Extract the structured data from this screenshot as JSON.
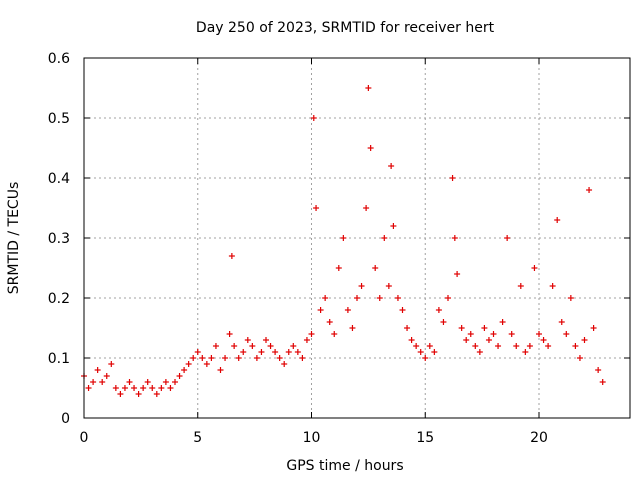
{
  "chart_data": {
    "type": "scatter",
    "title": "Day 250 of 2023, SRMTID for receiver hert",
    "xlabel": "GPS time / hours",
    "ylabel": "SRMTID / TECUs",
    "xlim": [
      0,
      24
    ],
    "ylim": [
      0,
      0.6
    ],
    "xticks": [
      0,
      5,
      10,
      15,
      20
    ],
    "yticks": [
      0,
      0.1,
      0.2,
      0.3,
      0.4,
      0.5,
      0.6
    ],
    "xtick_labels": [
      "0",
      "5",
      "10",
      "15",
      "20"
    ],
    "ytick_labels": [
      "0",
      "0.1",
      "0.2",
      "0.3",
      "0.4",
      "0.5",
      "0.6"
    ],
    "grid": true,
    "marker": "+",
    "color": "#e00000",
    "series": [
      {
        "name": "SRMTID",
        "x": [
          0.0,
          0.2,
          0.4,
          0.6,
          0.8,
          1.0,
          1.2,
          1.4,
          1.6,
          1.8,
          2.0,
          2.2,
          2.4,
          2.6,
          2.8,
          3.0,
          3.2,
          3.4,
          3.6,
          3.8,
          4.0,
          4.2,
          4.4,
          4.6,
          4.8,
          5.0,
          5.2,
          5.4,
          5.6,
          5.8,
          6.0,
          6.2,
          6.4,
          6.5,
          6.6,
          6.8,
          7.0,
          7.2,
          7.4,
          7.6,
          7.8,
          8.0,
          8.2,
          8.4,
          8.6,
          8.8,
          9.0,
          9.2,
          9.4,
          9.6,
          9.8,
          10.0,
          10.1,
          10.2,
          10.4,
          10.6,
          10.8,
          11.0,
          11.2,
          11.4,
          11.6,
          11.8,
          12.0,
          12.2,
          12.4,
          12.5,
          12.6,
          12.8,
          13.0,
          13.2,
          13.4,
          13.5,
          13.6,
          13.8,
          14.0,
          14.2,
          14.4,
          14.6,
          14.8,
          15.0,
          15.2,
          15.4,
          15.6,
          15.8,
          16.0,
          16.2,
          16.3,
          16.4,
          16.6,
          16.8,
          17.0,
          17.2,
          17.4,
          17.6,
          17.8,
          18.0,
          18.2,
          18.4,
          18.6,
          18.8,
          19.0,
          19.2,
          19.4,
          19.6,
          19.8,
          20.0,
          20.2,
          20.4,
          20.6,
          20.8,
          21.0,
          21.2,
          21.4,
          21.6,
          21.8,
          22.0,
          22.2,
          22.4,
          22.6,
          22.8
        ],
        "y": [
          0.07,
          0.05,
          0.06,
          0.08,
          0.06,
          0.07,
          0.09,
          0.05,
          0.04,
          0.05,
          0.06,
          0.05,
          0.04,
          0.05,
          0.06,
          0.05,
          0.04,
          0.05,
          0.06,
          0.05,
          0.06,
          0.07,
          0.08,
          0.09,
          0.1,
          0.11,
          0.1,
          0.09,
          0.1,
          0.12,
          0.08,
          0.1,
          0.14,
          0.27,
          0.12,
          0.1,
          0.11,
          0.13,
          0.12,
          0.1,
          0.11,
          0.13,
          0.12,
          0.11,
          0.1,
          0.09,
          0.11,
          0.12,
          0.11,
          0.1,
          0.13,
          0.14,
          0.5,
          0.35,
          0.18,
          0.2,
          0.16,
          0.14,
          0.25,
          0.3,
          0.18,
          0.15,
          0.2,
          0.22,
          0.35,
          0.55,
          0.45,
          0.25,
          0.2,
          0.3,
          0.22,
          0.42,
          0.32,
          0.2,
          0.18,
          0.15,
          0.13,
          0.12,
          0.11,
          0.1,
          0.12,
          0.11,
          0.18,
          0.16,
          0.2,
          0.4,
          0.3,
          0.24,
          0.15,
          0.13,
          0.14,
          0.12,
          0.11,
          0.15,
          0.13,
          0.14,
          0.12,
          0.16,
          0.3,
          0.14,
          0.12,
          0.22,
          0.11,
          0.12,
          0.25,
          0.14,
          0.13,
          0.12,
          0.22,
          0.33,
          0.16,
          0.14,
          0.2,
          0.12,
          0.1,
          0.13,
          0.38,
          0.15,
          0.08,
          0.06
        ]
      }
    ]
  }
}
